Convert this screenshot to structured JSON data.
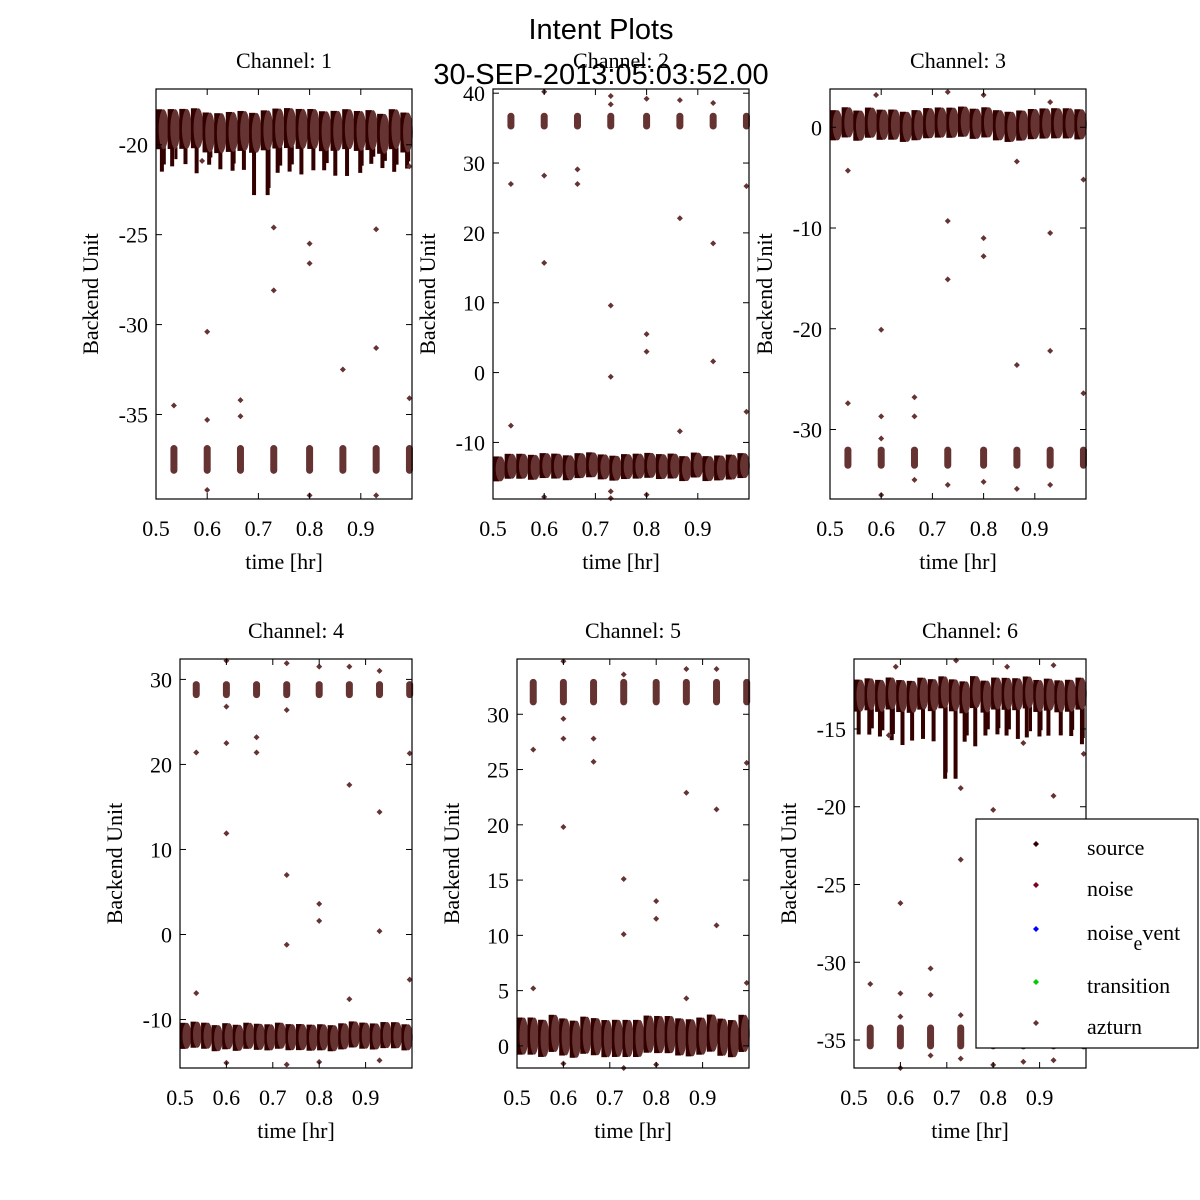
{
  "chart_data": {
    "type": "scatter",
    "suptitle_line1": "Intent Plots",
    "suptitle_line2": "30-SEP-2013:05:03:52.00",
    "xlabel": "time [hr]",
    "ylabel": "Backend Unit",
    "xlim": [
      0.5,
      1.0
    ],
    "xticks": [
      0.5,
      0.6,
      0.7,
      0.8,
      0.9
    ],
    "xtick_labels": [
      "0.5",
      "0.6",
      "0.7",
      "0.8",
      "0.9"
    ],
    "grid": false,
    "legend": {
      "placement": "lower-right of Channel 6",
      "entries": [
        {
          "label": "source",
          "color": "#330000"
        },
        {
          "label": "noise",
          "color": "#800020"
        },
        {
          "label": "noise",
          "sub": "e",
          "rest": "vent",
          "color": "#0000ff"
        },
        {
          "label": "transition",
          "color": "#00cc00"
        },
        {
          "label": "azturn",
          "color": "#663333"
        }
      ]
    },
    "colors": {
      "source": "#330000",
      "azturn": "#663333"
    },
    "azturn_times": [
      0.535,
      0.6,
      0.665,
      0.73,
      0.8,
      0.865,
      0.93,
      0.995
    ],
    "panels": [
      {
        "title": "Channel: 1",
        "ylim": [
          -39.7,
          -16.9
        ],
        "yticks": [
          -20,
          -25,
          -30,
          -35
        ],
        "ytick_labels": [
          "-20",
          "-25",
          "-30",
          "-35"
        ],
        "source_band": {
          "center": -19.2,
          "halfwidth": 1.0,
          "tail_to": -21.5,
          "deep_tail": -22.8
        },
        "azturn_band": {
          "center": -37.5,
          "halfwidth": 0.8
        },
        "outliers": [
          [
            0.535,
            -34.5
          ],
          [
            0.6,
            -35.3
          ],
          [
            0.6,
            -30.4
          ],
          [
            0.665,
            -34.2
          ],
          [
            0.665,
            -35.1
          ],
          [
            0.73,
            -24.6
          ],
          [
            0.73,
            -28.1
          ],
          [
            0.8,
            -25.5
          ],
          [
            0.8,
            -26.6
          ],
          [
            0.865,
            -32.5
          ],
          [
            0.93,
            -24.7
          ],
          [
            0.93,
            -31.3
          ],
          [
            0.995,
            -34.1
          ],
          [
            0.995,
            -21.2
          ],
          [
            0.59,
            -20.9
          ],
          [
            0.6,
            -39.2
          ],
          [
            0.8,
            -39.5
          ],
          [
            0.93,
            -39.5
          ]
        ]
      },
      {
        "title": "Channel: 2",
        "ylim": [
          -18.1,
          40.6
        ],
        "yticks": [
          40,
          30,
          20,
          10,
          0,
          -10
        ],
        "ytick_labels": [
          "40",
          "30",
          "20",
          "10",
          "0",
          "-10"
        ],
        "source_band": {
          "center": -13.5,
          "halfwidth": 1.5,
          "tail_to": -13.5,
          "deep_tail": -13.5
        },
        "azturn_band": {
          "center": 36.0,
          "halfwidth": 1.2
        },
        "outliers": [
          [
            0.535,
            27.0
          ],
          [
            0.6,
            28.2
          ],
          [
            0.6,
            15.7
          ],
          [
            0.665,
            27.0
          ],
          [
            0.665,
            29.1
          ],
          [
            0.73,
            9.6
          ],
          [
            0.73,
            -0.6
          ],
          [
            0.8,
            5.5
          ],
          [
            0.8,
            3.0
          ],
          [
            0.865,
            22.1
          ],
          [
            0.865,
            -8.4
          ],
          [
            0.93,
            18.5
          ],
          [
            0.93,
            1.6
          ],
          [
            0.995,
            26.7
          ],
          [
            0.995,
            -5.6
          ],
          [
            0.535,
            -7.6
          ],
          [
            0.6,
            40.2
          ],
          [
            0.73,
            39.6
          ],
          [
            0.73,
            38.4
          ],
          [
            0.8,
            39.2
          ],
          [
            0.865,
            39.0
          ],
          [
            0.93,
            38.6
          ],
          [
            0.6,
            -17.8
          ],
          [
            0.73,
            -17.0
          ],
          [
            0.73,
            -18.0
          ],
          [
            0.8,
            -17.5
          ]
        ]
      },
      {
        "title": "Channel: 3",
        "ylim": [
          -36.9,
          3.8
        ],
        "yticks": [
          0,
          -10,
          -20,
          -30
        ],
        "ytick_labels": [
          "0",
          "-10",
          "-20",
          "-30"
        ],
        "source_band": {
          "center": 0.3,
          "halfwidth": 1.3,
          "tail_to": 0.3,
          "deep_tail": 0.3
        },
        "azturn_band": {
          "center": -32.8,
          "halfwidth": 1.1
        },
        "outliers": [
          [
            0.535,
            -4.3
          ],
          [
            0.535,
            -27.4
          ],
          [
            0.6,
            -20.1
          ],
          [
            0.6,
            -28.7
          ],
          [
            0.6,
            -30.9
          ],
          [
            0.6,
            -36.5
          ],
          [
            0.665,
            -26.8
          ],
          [
            0.665,
            -28.7
          ],
          [
            0.665,
            -35.0
          ],
          [
            0.73,
            -9.3
          ],
          [
            0.73,
            -15.1
          ],
          [
            0.73,
            -35.5
          ],
          [
            0.8,
            -11.0
          ],
          [
            0.8,
            -12.8
          ],
          [
            0.8,
            -35.2
          ],
          [
            0.865,
            -3.4
          ],
          [
            0.865,
            -23.6
          ],
          [
            0.865,
            -35.9
          ],
          [
            0.93,
            -10.5
          ],
          [
            0.93,
            -22.2
          ],
          [
            0.93,
            -35.5
          ],
          [
            0.995,
            -5.2
          ],
          [
            0.995,
            -26.4
          ],
          [
            0.59,
            3.2
          ],
          [
            0.73,
            3.5
          ],
          [
            0.8,
            3.2
          ],
          [
            0.93,
            2.5
          ]
        ]
      },
      {
        "title": "Channel: 4",
        "ylim": [
          -15.7,
          32.4
        ],
        "yticks": [
          30,
          20,
          10,
          0,
          -10
        ],
        "ytick_labels": [
          "30",
          "20",
          "10",
          "0",
          "-10"
        ],
        "source_band": {
          "center": -12.0,
          "halfwidth": 1.3,
          "tail_to": -12.0,
          "deep_tail": -12.0
        },
        "azturn_band": {
          "center": 28.8,
          "halfwidth": 1.0
        },
        "outliers": [
          [
            0.535,
            21.4
          ],
          [
            0.6,
            22.5
          ],
          [
            0.6,
            11.9
          ],
          [
            0.6,
            26.8
          ],
          [
            0.665,
            23.2
          ],
          [
            0.665,
            21.4
          ],
          [
            0.73,
            7.0
          ],
          [
            0.73,
            -1.2
          ],
          [
            0.73,
            26.4
          ],
          [
            0.8,
            3.6
          ],
          [
            0.8,
            1.6
          ],
          [
            0.865,
            17.6
          ],
          [
            0.865,
            -7.6
          ],
          [
            0.93,
            14.4
          ],
          [
            0.93,
            0.4
          ],
          [
            0.995,
            21.3
          ],
          [
            0.995,
            -5.3
          ],
          [
            0.535,
            -6.9
          ],
          [
            0.6,
            32.2
          ],
          [
            0.73,
            31.9
          ],
          [
            0.8,
            31.5
          ],
          [
            0.865,
            31.5
          ],
          [
            0.93,
            31.0
          ],
          [
            0.73,
            -15.3
          ],
          [
            0.8,
            -15.0
          ],
          [
            0.6,
            -15.1
          ],
          [
            0.93,
            -14.8
          ]
        ]
      },
      {
        "title": "Channel: 5",
        "ylim": [
          -2.0,
          35.0
        ],
        "yticks": [
          30,
          25,
          20,
          15,
          10,
          5,
          0
        ],
        "ytick_labels": [
          "30",
          "25",
          "20",
          "15",
          "10",
          "5",
          "0"
        ],
        "source_band": {
          "center": 0.9,
          "halfwidth": 1.5,
          "tail_to": 0.9,
          "deep_tail": 0.9
        },
        "azturn_band": {
          "center": 32.0,
          "halfwidth": 1.2
        },
        "outliers": [
          [
            0.535,
            26.8
          ],
          [
            0.6,
            27.8
          ],
          [
            0.6,
            19.8
          ],
          [
            0.6,
            29.6
          ],
          [
            0.665,
            27.8
          ],
          [
            0.665,
            25.7
          ],
          [
            0.73,
            15.1
          ],
          [
            0.73,
            10.1
          ],
          [
            0.8,
            13.1
          ],
          [
            0.8,
            11.5
          ],
          [
            0.865,
            22.9
          ],
          [
            0.865,
            4.3
          ],
          [
            0.93,
            21.4
          ],
          [
            0.93,
            10.9
          ],
          [
            0.995,
            25.6
          ],
          [
            0.995,
            5.7
          ],
          [
            0.535,
            5.2
          ],
          [
            0.6,
            34.8
          ],
          [
            0.73,
            33.6
          ],
          [
            0.865,
            34.1
          ],
          [
            0.93,
            34.1
          ],
          [
            0.6,
            -1.6
          ],
          [
            0.73,
            -2.0
          ],
          [
            0.8,
            -1.7
          ]
        ]
      },
      {
        "title": "Channel: 6",
        "ylim": [
          -36.8,
          -10.5
        ],
        "yticks": [
          -15,
          -20,
          -25,
          -30,
          -35
        ],
        "ytick_labels": [
          "-15",
          "-20",
          "-25",
          "-30",
          "-35"
        ],
        "source_band": {
          "center": -12.8,
          "halfwidth": 0.9,
          "tail_to": -15.9,
          "deep_tail": -18.2
        },
        "azturn_band": {
          "center": -34.8,
          "halfwidth": 0.8
        },
        "outliers": [
          [
            0.535,
            -31.4
          ],
          [
            0.6,
            -26.2
          ],
          [
            0.6,
            -32.0
          ],
          [
            0.6,
            -33.5
          ],
          [
            0.665,
            -30.4
          ],
          [
            0.665,
            -32.1
          ],
          [
            0.665,
            -36.0
          ],
          [
            0.73,
            -23.4
          ],
          [
            0.73,
            -33.4
          ],
          [
            0.73,
            -36.2
          ],
          [
            0.73,
            -18.8
          ],
          [
            0.8,
            -36.6
          ],
          [
            0.8,
            -20.2
          ],
          [
            0.865,
            -36.4
          ],
          [
            0.865,
            -15.9
          ],
          [
            0.93,
            -36.3
          ],
          [
            0.93,
            -19.3
          ],
          [
            0.995,
            -16.6
          ],
          [
            0.6,
            -36.8
          ],
          [
            0.575,
            -15.4
          ],
          [
            0.59,
            -11.0
          ],
          [
            0.72,
            -10.6
          ],
          [
            0.83,
            -11.0
          ],
          [
            0.93,
            -10.9
          ]
        ]
      }
    ]
  }
}
